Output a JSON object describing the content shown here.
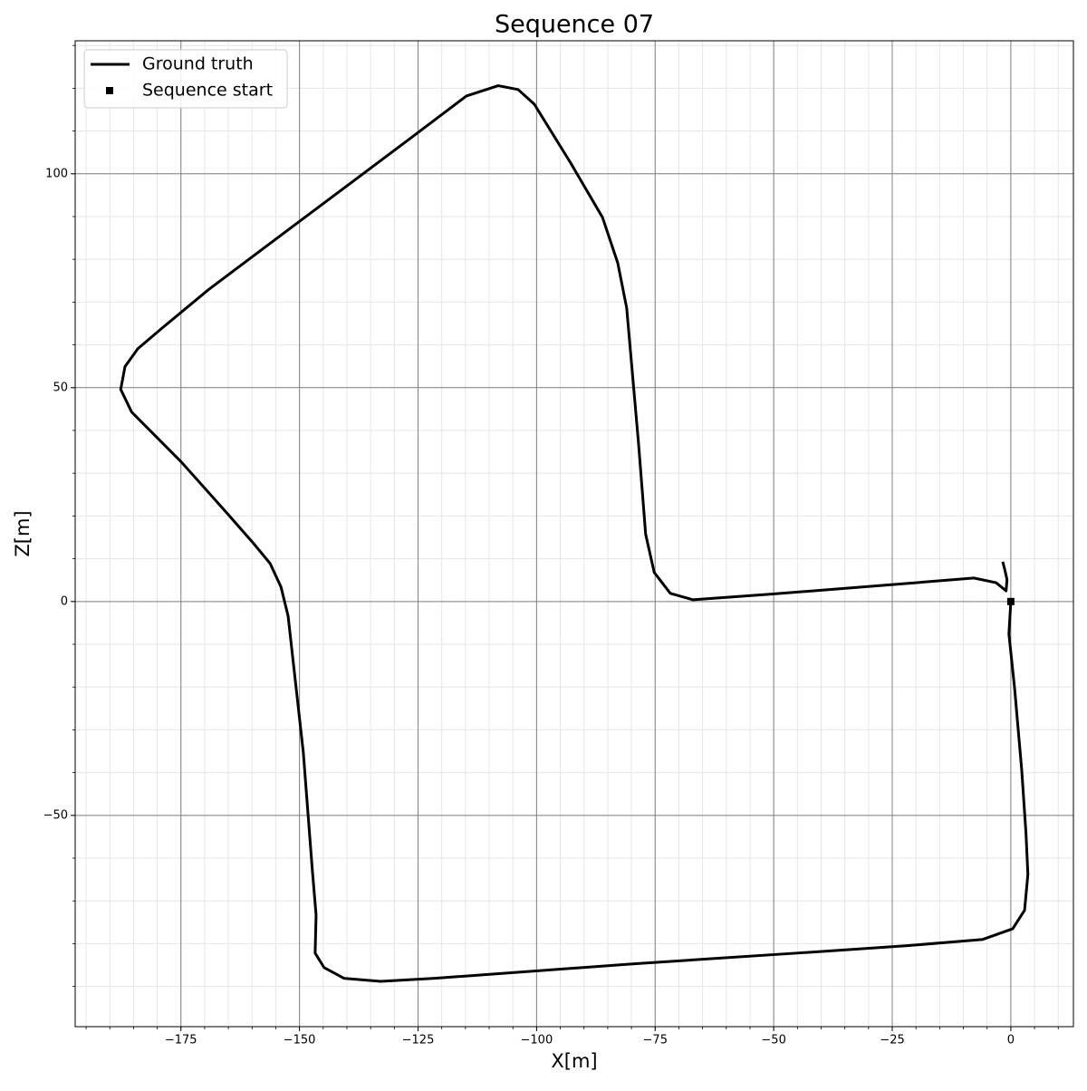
{
  "chart_data": {
    "type": "line",
    "title": "Sequence 07",
    "xlabel": "X[m]",
    "ylabel": "Z[m]",
    "xlim": [
      -197.3,
      13.2
    ],
    "ylim": [
      -99.4,
      131.1
    ],
    "xticks": [
      {
        "value": -175,
        "label": "−175"
      },
      {
        "value": -150,
        "label": "−150"
      },
      {
        "value": -125,
        "label": "−125"
      },
      {
        "value": -100,
        "label": "−100"
      },
      {
        "value": -75,
        "label": "−75"
      },
      {
        "value": -50,
        "label": "−50"
      },
      {
        "value": -25,
        "label": "−25"
      },
      0
    ],
    "yticks": [
      {
        "value": -50,
        "label": "−50"
      },
      0,
      50,
      100
    ],
    "grid": true,
    "minor_xstep": 5,
    "minor_ystep": 10,
    "legend": "upper left",
    "series": [
      {
        "name": "Ground truth",
        "color": "#000000",
        "x": [
          0,
          -0.4,
          0.8,
          2.3,
          3.2,
          3.6,
          2.9,
          0.4,
          -5.9,
          -22.2,
          -45.1,
          -79.4,
          -121.5,
          -132.9,
          -140.6,
          -144.8,
          -146.7,
          -146.5,
          -147.3,
          -149.2,
          -152.4,
          -153.9,
          -156.2,
          -159.7,
          -165.4,
          -174.9,
          -185.4,
          -187.7,
          -186.8,
          -184.1,
          -179.1,
          -169.2,
          -150.1,
          -127.2,
          -114.8,
          -108.1,
          -103.9,
          -100.5,
          -92.8,
          -86.1,
          -82.9,
          -81.0,
          -78.5,
          -77.0,
          -75.2,
          -71.8,
          -67.0,
          -50.8,
          -22.2,
          -7.8,
          -3.1,
          -1.0,
          -0.8,
          -1.3,
          -1.7
        ],
        "values": [
          0,
          -7.6,
          -20.3,
          -39.4,
          -54.2,
          -63.8,
          -72.2,
          -76.5,
          -79.0,
          -80.5,
          -82.2,
          -84.7,
          -88.1,
          -88.8,
          -88.1,
          -85.6,
          -82.2,
          -73.3,
          -62.7,
          -35.2,
          -3.4,
          3.4,
          8.9,
          13.6,
          20.8,
          32.6,
          44.3,
          49.6,
          54.9,
          59.1,
          63.8,
          72.9,
          88.8,
          107.8,
          118.2,
          120.6,
          119.7,
          116.3,
          102.5,
          89.8,
          79.2,
          68.6,
          36.9,
          15.7,
          6.8,
          1.9,
          0.4,
          1.7,
          4.2,
          5.5,
          4.4,
          2.5,
          5.1,
          7.6,
          9.3
        ]
      },
      {
        "name": "Sequence start",
        "color": "#000000",
        "marker": "square",
        "x": [
          0
        ],
        "values": [
          0
        ]
      }
    ]
  }
}
